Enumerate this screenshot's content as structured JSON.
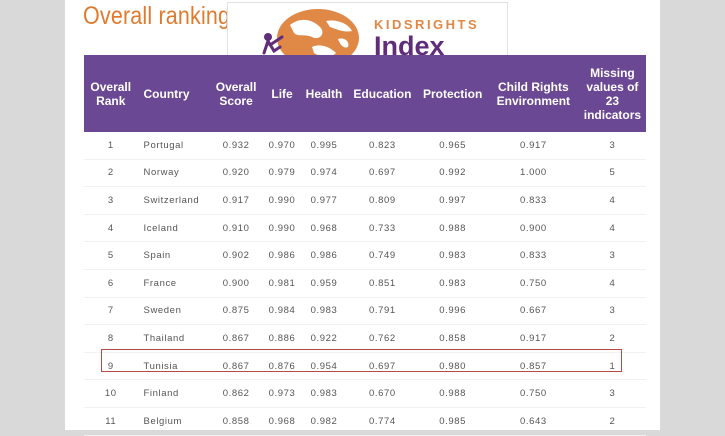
{
  "page": {
    "heading": "Overall ranking"
  },
  "logo": {
    "line1": "KIDSRIGHTS",
    "line2": "Index"
  },
  "table": {
    "headers": [
      "Overall Rank",
      "Country",
      "Overall Score",
      "Life",
      "Health",
      "Education",
      "Protection",
      "Child Rights Environment",
      "Missing values of 23 indicators"
    ],
    "rows": [
      [
        "1",
        "Portugal",
        "0.932",
        "0.970",
        "0.995",
        "0.823",
        "0.965",
        "0.917",
        "3"
      ],
      [
        "2",
        "Norway",
        "0.920",
        "0.979",
        "0.974",
        "0.697",
        "0.992",
        "1.000",
        "5"
      ],
      [
        "3",
        "Switzerland",
        "0.917",
        "0.990",
        "0.977",
        "0.809",
        "0.997",
        "0.833",
        "4"
      ],
      [
        "4",
        "Iceland",
        "0.910",
        "0.990",
        "0.968",
        "0.733",
        "0.988",
        "0.900",
        "4"
      ],
      [
        "5",
        "Spain",
        "0.902",
        "0.986",
        "0.986",
        "0.749",
        "0.983",
        "0.833",
        "3"
      ],
      [
        "6",
        "France",
        "0.900",
        "0.981",
        "0.959",
        "0.851",
        "0.983",
        "0.750",
        "4"
      ],
      [
        "7",
        "Sweden",
        "0.875",
        "0.984",
        "0.983",
        "0.791",
        "0.996",
        "0.667",
        "3"
      ],
      [
        "8",
        "Thailand",
        "0.867",
        "0.886",
        "0.922",
        "0.762",
        "0.858",
        "0.917",
        "2"
      ],
      [
        "9",
        "Tunisia",
        "0.867",
        "0.876",
        "0.954",
        "0.697",
        "0.980",
        "0.857",
        "1"
      ],
      [
        "10",
        "Finland",
        "0.862",
        "0.973",
        "0.983",
        "0.670",
        "0.988",
        "0.750",
        "3"
      ],
      [
        "11",
        "Belgium",
        "0.858",
        "0.968",
        "0.982",
        "0.774",
        "0.985",
        "0.643",
        "2"
      ]
    ]
  },
  "colors": {
    "header_bg": "#6b4893",
    "heading": "#e07a2e",
    "highlight_border": "#b64a4a",
    "background": "#d9d9d9"
  }
}
